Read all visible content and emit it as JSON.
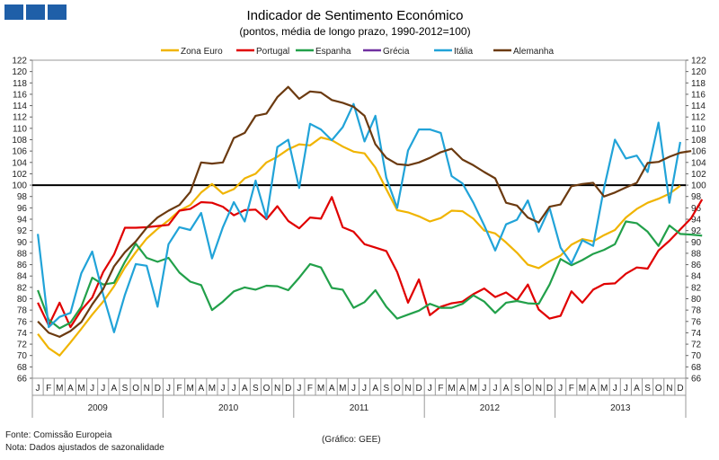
{
  "chart_data": {
    "type": "line",
    "title": "Indicador de Sentimento Económico",
    "subtitle": "(pontos, média de longo prazo, 1990-2012=100)",
    "ylim": [
      66,
      122
    ],
    "y_ticks": [
      66,
      68,
      70,
      72,
      74,
      76,
      78,
      80,
      82,
      84,
      86,
      88,
      90,
      92,
      94,
      96,
      98,
      100,
      102,
      104,
      106,
      108,
      110,
      112,
      114,
      116,
      118,
      120,
      122
    ],
    "reference_line": 100,
    "month_labels": [
      "J",
      "F",
      "M",
      "A",
      "M",
      "J",
      "J",
      "A",
      "S",
      "O",
      "N",
      "D"
    ],
    "years": [
      "2009",
      "2010",
      "2011",
      "2012",
      "2013"
    ],
    "legend_position": "top",
    "grid": false,
    "series": [
      {
        "name": "Zona Euro",
        "color": "#f0b400",
        "values": [
          73.8,
          71.3,
          70,
          72.3,
          74.7,
          77.2,
          79.5,
          82.2,
          85.5,
          88.2,
          90.6,
          92.3,
          93.8,
          95.5,
          96.5,
          98.7,
          100.2,
          98.5,
          99.3,
          101.2,
          102,
          104,
          105,
          106.3,
          107.2,
          107,
          108.4,
          107.9,
          106.8,
          105.9,
          105.6,
          103.1,
          99.3,
          95.6,
          95.2,
          94.5,
          93.6,
          94.2,
          95.5,
          95.4,
          94.1,
          92,
          91.5,
          89.9,
          88.1,
          86,
          85.4,
          86.6,
          87.6,
          89.5,
          90.5,
          90.1,
          91.2,
          92.1,
          94.3,
          95.8,
          96.9,
          97.6,
          98.5,
          99.9
        ]
      },
      {
        "name": "Portugal",
        "color": "#e00000",
        "values": [
          79.3,
          75.3,
          79.3,
          75,
          78,
          80.2,
          84.7,
          87.8,
          92.5,
          92.5,
          92.6,
          92.8,
          93,
          95.5,
          95.8,
          97,
          96.9,
          96.2,
          94.7,
          95.6,
          95.7,
          94,
          96.3,
          93.7,
          92.4,
          94.3,
          94.1,
          97.9,
          92.6,
          91.8,
          89.6,
          89,
          88.4,
          84.7,
          79.3,
          83.4,
          77.1,
          78.6,
          79.2,
          79.5,
          80.8,
          81.8,
          80.3,
          81.1,
          79.7,
          82.5,
          78.1,
          76.5,
          77,
          81.3,
          79.3,
          81.6,
          82.6,
          82.7,
          84.4,
          85.5,
          85.3,
          88.5,
          90.2,
          92.2,
          94.2,
          97.5
        ]
      },
      {
        "name": "Espanha",
        "color": "#22a04a",
        "values": [
          81.5,
          76.3,
          74.8,
          75.8,
          78.6,
          83.7,
          82.5,
          82.8,
          86.5,
          89.7,
          87.2,
          86.5,
          87.2,
          84.6,
          83,
          82.4,
          78,
          79.5,
          81.3,
          82,
          81.6,
          82.3,
          82.2,
          81.5,
          83.7,
          86.1,
          85.5,
          81.9,
          81.6,
          78.4,
          79.4,
          81.5,
          78.6,
          76.5,
          77.2,
          77.9,
          79.1,
          78.4,
          78.4,
          79.1,
          80.6,
          79.5,
          77.5,
          79.3,
          79.6,
          79.2,
          79.1,
          82.5,
          87,
          85.9,
          86.8,
          87.9,
          88.6,
          89.6,
          93.6,
          93.3,
          91.8,
          89.3,
          92.9,
          91.4,
          91.3,
          91.1
        ]
      },
      {
        "name": "Grécia",
        "color": "#7030a0",
        "values": []
      },
      {
        "name": "Itália",
        "color": "#21a3d8",
        "values": [
          91.4,
          75,
          76.8,
          77.5,
          84.5,
          88.3,
          80.7,
          74.1,
          80.7,
          86.1,
          85.8,
          78.6,
          89.6,
          92.6,
          92.1,
          95.1,
          87.1,
          92.6,
          97,
          93.6,
          100.8,
          94.2,
          106.7,
          108,
          99.5,
          110.8,
          109.8,
          107.9,
          110.2,
          114.3,
          107.7,
          112.2,
          101.3,
          96,
          106.1,
          109.8,
          109.8,
          109.2,
          101.6,
          100.3,
          96.9,
          92.9,
          88.5,
          93.1,
          93.9,
          97.3,
          91.8,
          96,
          89,
          86.2,
          90.3,
          89.3,
          99.5,
          108,
          104.7,
          105.2,
          102.3,
          111,
          96.9,
          107.6
        ]
      },
      {
        "name": "Alemanha",
        "color": "#6b3a10",
        "values": [
          76,
          74,
          73.3,
          74.3,
          75.9,
          79,
          81.7,
          85.7,
          88.2,
          90.1,
          92.5,
          94.3,
          95.5,
          96.5,
          98.8,
          104,
          103.8,
          104,
          108.3,
          109.2,
          112.2,
          112.6,
          115.5,
          117.3,
          115.2,
          116.5,
          116.3,
          115,
          114.5,
          113.8,
          112.2,
          107.2,
          104.8,
          103.7,
          103.5,
          104,
          104.8,
          105.8,
          106.4,
          104.5,
          103.5,
          102.3,
          101.2,
          96.9,
          96.4,
          94.3,
          93.4,
          96.2,
          96.6,
          99.8,
          100.2,
          100.4,
          98,
          98.7,
          99.6,
          100.4,
          103.9,
          104.1,
          105,
          105.7,
          106
        ]
      }
    ]
  },
  "footer": {
    "source": "Fonte: Comissão Europeia",
    "note": "Nota: Dados ajustados de sazonalidade",
    "credit": "(Gráfico: GEE)"
  }
}
